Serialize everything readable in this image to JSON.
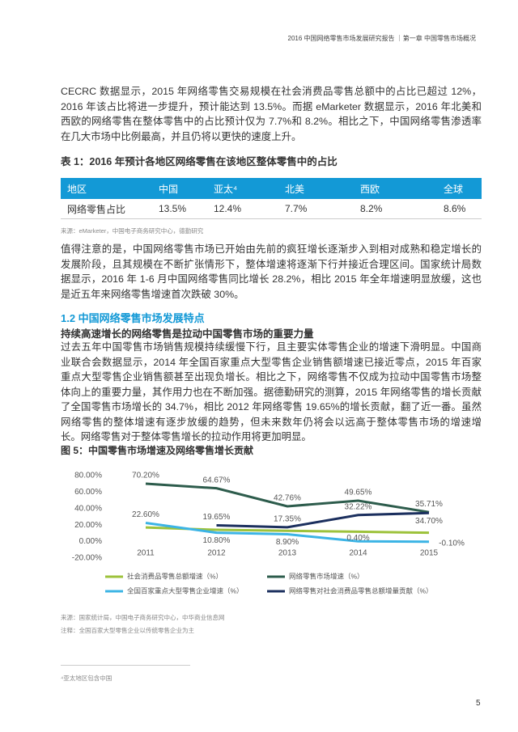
{
  "header": {
    "title": "2016 中国网络零售市场发展研究报告 ｜第一章 中国零售市场概况"
  },
  "paragraphs": [
    "CECRC 数据显示，2015 年网络零售交易规模在社会消费品零售总额中的占比已超过 12%，2016 年该占比将进一步提升，预计能达到 13.5%。而据 eMarketer 数据显示，2016 年北美和西欧的网络零售在整体零售中的占比预计仅为 7.7%和 8.2%。相比之下，中国网络零售渗透率在几大市场中比例最高，并且仍将以更快的速度上升。",
    "值得注意的是，中国网络零售市场已开始由先前的疯狂增长逐渐步入到相对成熟和稳定增长的发展阶段，且其规模在不断扩张情形下，整体增速将逐渐下行并接近合理区间。国家统计局数据显示，2016 年 1-6 月中国网络零售同比增长 28.2%，相比 2015 年全年增速明显放缓，这也是近五年来网络零售增速首次跌破 30%。",
    "过去五年中国零售市场销售规模持续缓慢下行，且主要实体零售企业的增速下滑明显。中国商业联合会数据显示，2014 年全国百家重点大型零售企业销售额增速已接近零点，2015 年百家重点大型零售企业销售额甚至出现负增长。相比之下，网络零售不仅成为拉动中国零售市场整体向上的重要力量，其作用力也在不断加强。据德勤研究的测算，2015 年网络零售的增长贡献了全国零售市场增长的 34.7%，相比 2012 年网络零售 19.65%的增长贡献，翻了近一番。虽然网络零售的整体增速有逐步放缓的趋势，但未来数年仍将会以远高于整体零售市场的增速增长。网络零售对于整体零售增长的拉动作用将更加明显。"
  ],
  "table": {
    "title": "表 1：2016 年预计各地区网络零售在该地区整体零售中的占比",
    "header": [
      "地区",
      "中国",
      "亚太⁴",
      "北美",
      "西欧",
      "全球"
    ],
    "rows": [
      [
        "网络零售占比",
        "13.5%",
        "12.4%",
        "7.7%",
        "8.2%",
        "8.6%"
      ]
    ],
    "source": "来源：eMarketer，中国电子商务研究中心，德勤研究"
  },
  "section": {
    "heading": "1.2 中国网络零售市场发展特点",
    "subheading": "持续高速增长的网络零售是拉动中国零售市场的重要力量"
  },
  "figure": {
    "title": "图 5：中国零售市场增速及网络零售增长贡献",
    "source": "来源：国家统计局，中国电子商务研究中心，中华商业信息网",
    "note": "注释：全国百家大型零售企业以传统零售企业为主"
  },
  "chart_data": {
    "type": "line",
    "categories": [
      "2011",
      "2012",
      "2013",
      "2014",
      "2015"
    ],
    "ylim": [
      -20,
      80
    ],
    "yticks": [
      {
        "value": -20,
        "label": "-20.00%"
      },
      {
        "value": 0,
        "label": "0.00%"
      },
      {
        "value": 20,
        "label": "20.00%"
      },
      {
        "value": 40,
        "label": "40.00%"
      },
      {
        "value": 60,
        "label": "60.00%"
      },
      {
        "value": 80,
        "label": "80.00%"
      }
    ],
    "series": [
      {
        "name": "社会消费品零售总额增速（%）",
        "color": "#9dc23b",
        "values": [
          17.1,
          14.3,
          13.1,
          12.0,
          10.7
        ]
      },
      {
        "name": "网络零售市场增速（%）",
        "color": "#2d5c4c",
        "values": [
          70.2,
          64.67,
          42.76,
          49.65,
          35.71
        ],
        "value_labels": [
          "70.20%",
          "64.67%",
          "42.76%",
          "49.65%",
          "35.71%"
        ]
      },
      {
        "name": "全国百家重点大型零售企业增速（%）",
        "color": "#3cb4e5",
        "values": [
          22.6,
          10.8,
          8.9,
          0.4,
          -0.1
        ],
        "value_labels": [
          "22.60%",
          "10.80%",
          "8.90%",
          "0.40%",
          "-0.10%"
        ]
      },
      {
        "name": "网络零售对社会消费品零售总额增量贡献（%）",
        "color": "#1b2f5e",
        "values": [
          null,
          19.65,
          17.35,
          32.22,
          34.7
        ],
        "value_labels": [
          null,
          "19.65%",
          "17.35%",
          "32.22%",
          "34.70%"
        ]
      }
    ]
  },
  "footnote": "⁴亚太地区包含中国",
  "page_number": "5"
}
